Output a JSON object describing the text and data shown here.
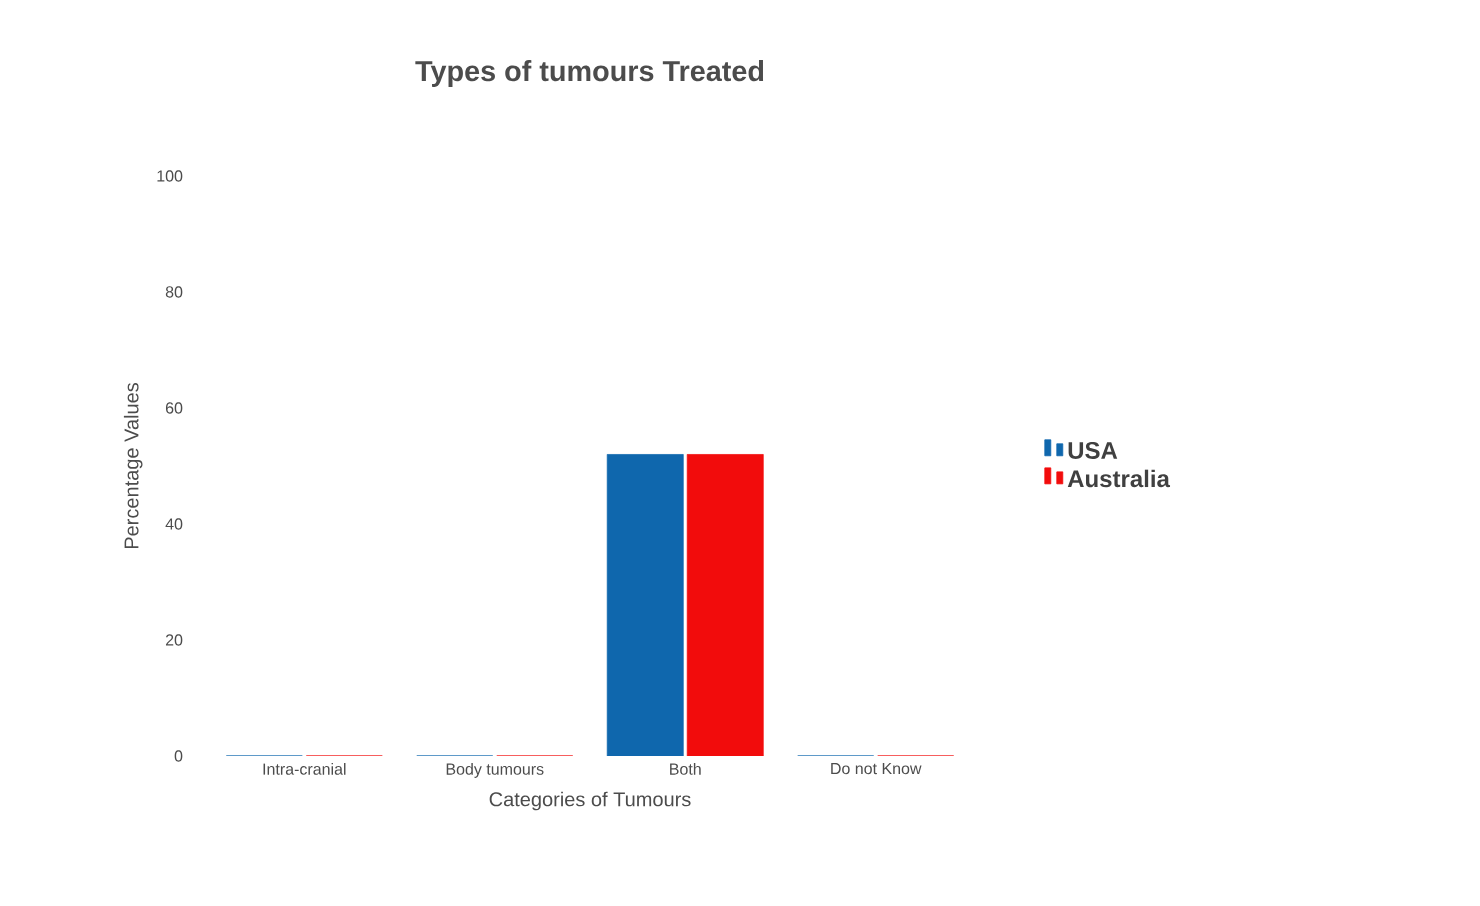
{
  "chart_data": {
    "type": "bar",
    "title": "Types of tumours Treated",
    "xlabel": "Categories of Tumours",
    "ylabel": "Percentage Values",
    "categories": [
      "Intra-cranial",
      "Body tumours",
      "Both",
      "Do not Know"
    ],
    "series": [
      {
        "name": "USA",
        "color": "#0f67ad",
        "values": [
          0,
          0,
          52,
          0
        ]
      },
      {
        "name": "Australia",
        "color": "#f20c0c",
        "values": [
          0,
          0,
          52,
          0
        ]
      }
    ],
    "ylim": [
      0,
      100
    ],
    "yticks": [
      0,
      20,
      40,
      60,
      80,
      100
    ],
    "grid": false,
    "legend": "right"
  }
}
